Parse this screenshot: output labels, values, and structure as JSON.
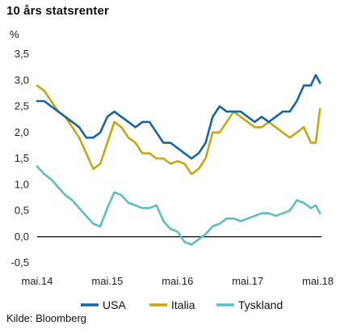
{
  "title": "10 års statsrenter",
  "unit_label": "%",
  "source": "Kilde: Bloomberg",
  "chart_data": {
    "type": "line",
    "title": "10 års statsrenter",
    "ylabel": "%",
    "ylim": [
      -0.5,
      3.5
    ],
    "xlim": [
      2014.35,
      2018.4
    ],
    "yticks": [
      {
        "value": 3.5,
        "label": "3,5"
      },
      {
        "value": 3.0,
        "label": "3,0"
      },
      {
        "value": 2.5,
        "label": "2,5"
      },
      {
        "value": 2.0,
        "label": "2,0"
      },
      {
        "value": 1.5,
        "label": "1,5"
      },
      {
        "value": 1.0,
        "label": "1,0"
      },
      {
        "value": 0.5,
        "label": "0,5"
      },
      {
        "value": 0.0,
        "label": "0,0"
      },
      {
        "value": -0.5,
        "label": "-0,5"
      }
    ],
    "xticks": [
      {
        "value": 2014.35,
        "label": "mai.14"
      },
      {
        "value": 2015.35,
        "label": "mai.15"
      },
      {
        "value": 2016.35,
        "label": "mai.16"
      },
      {
        "value": 2017.35,
        "label": "mai.17"
      },
      {
        "value": 2018.35,
        "label": "mai.18"
      }
    ],
    "legend_position": "bottom",
    "grid": false,
    "series": [
      {
        "name": "USA",
        "color": "#1565a8",
        "x": [
          2014.35,
          2014.45,
          2014.55,
          2014.65,
          2014.75,
          2014.85,
          2014.95,
          2015.05,
          2015.15,
          2015.25,
          2015.35,
          2015.45,
          2015.55,
          2015.65,
          2015.75,
          2015.85,
          2015.95,
          2016.05,
          2016.15,
          2016.25,
          2016.35,
          2016.45,
          2016.55,
          2016.65,
          2016.75,
          2016.85,
          2016.95,
          2017.05,
          2017.15,
          2017.25,
          2017.35,
          2017.45,
          2017.55,
          2017.65,
          2017.75,
          2017.85,
          2017.95,
          2018.05,
          2018.15,
          2018.25,
          2018.32,
          2018.38
        ],
        "y": [
          2.6,
          2.6,
          2.5,
          2.4,
          2.3,
          2.2,
          2.1,
          1.9,
          1.9,
          2.0,
          2.3,
          2.4,
          2.3,
          2.2,
          2.1,
          2.2,
          2.2,
          2.0,
          1.8,
          1.8,
          1.7,
          1.6,
          1.5,
          1.6,
          1.8,
          2.3,
          2.5,
          2.4,
          2.4,
          2.4,
          2.3,
          2.2,
          2.3,
          2.2,
          2.3,
          2.4,
          2.4,
          2.6,
          2.9,
          2.9,
          3.1,
          2.95
        ]
      },
      {
        "name": "Italia",
        "color": "#c8a612",
        "x": [
          2014.35,
          2014.45,
          2014.55,
          2014.65,
          2014.75,
          2014.85,
          2014.95,
          2015.05,
          2015.15,
          2015.25,
          2015.35,
          2015.45,
          2015.55,
          2015.65,
          2015.75,
          2015.85,
          2015.95,
          2016.05,
          2016.15,
          2016.25,
          2016.35,
          2016.45,
          2016.55,
          2016.65,
          2016.75,
          2016.85,
          2016.95,
          2017.05,
          2017.15,
          2017.25,
          2017.35,
          2017.45,
          2017.55,
          2017.65,
          2017.75,
          2017.85,
          2017.95,
          2018.05,
          2018.15,
          2018.25,
          2018.32,
          2018.38
        ],
        "y": [
          2.9,
          2.8,
          2.6,
          2.4,
          2.3,
          2.1,
          1.9,
          1.6,
          1.3,
          1.4,
          1.8,
          2.2,
          2.1,
          1.9,
          1.8,
          1.6,
          1.6,
          1.5,
          1.5,
          1.4,
          1.45,
          1.4,
          1.2,
          1.3,
          1.5,
          2.0,
          2.0,
          2.2,
          2.4,
          2.3,
          2.2,
          2.1,
          2.1,
          2.2,
          2.1,
          2.0,
          1.9,
          2.0,
          2.1,
          1.8,
          1.8,
          2.45
        ]
      },
      {
        "name": "Tyskland",
        "color": "#5bbfbf",
        "x": [
          2014.35,
          2014.45,
          2014.55,
          2014.65,
          2014.75,
          2014.85,
          2014.95,
          2015.05,
          2015.15,
          2015.25,
          2015.35,
          2015.45,
          2015.55,
          2015.65,
          2015.75,
          2015.85,
          2015.95,
          2016.05,
          2016.15,
          2016.25,
          2016.35,
          2016.45,
          2016.55,
          2016.65,
          2016.75,
          2016.85,
          2016.95,
          2017.05,
          2017.15,
          2017.25,
          2017.35,
          2017.45,
          2017.55,
          2017.65,
          2017.75,
          2017.85,
          2017.95,
          2018.05,
          2018.15,
          2018.25,
          2018.32,
          2018.38
        ],
        "y": [
          1.35,
          1.2,
          1.1,
          0.95,
          0.8,
          0.7,
          0.55,
          0.4,
          0.25,
          0.2,
          0.55,
          0.85,
          0.8,
          0.65,
          0.6,
          0.55,
          0.55,
          0.6,
          0.3,
          0.15,
          0.1,
          -0.1,
          -0.15,
          -0.05,
          0.05,
          0.2,
          0.25,
          0.35,
          0.35,
          0.3,
          0.35,
          0.4,
          0.45,
          0.45,
          0.4,
          0.45,
          0.5,
          0.7,
          0.65,
          0.55,
          0.6,
          0.45
        ]
      }
    ]
  }
}
